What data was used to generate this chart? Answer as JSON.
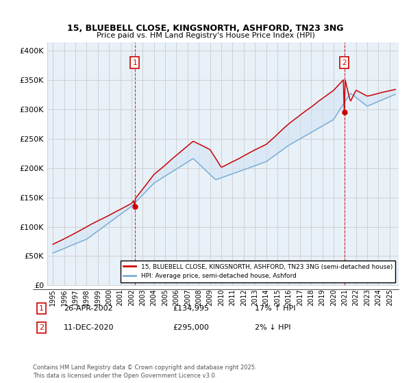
{
  "title": "15, BLUEBELL CLOSE, KINGSNORTH, ASHFORD, TN23 3NG",
  "subtitle": "Price paid vs. HM Land Registry's House Price Index (HPI)",
  "ylabel_ticks": [
    "£0",
    "£50K",
    "£100K",
    "£150K",
    "£200K",
    "£250K",
    "£300K",
    "£350K",
    "£400K"
  ],
  "ytick_vals": [
    0,
    50000,
    100000,
    150000,
    200000,
    250000,
    300000,
    350000,
    400000
  ],
  "ylim": [
    0,
    415000
  ],
  "xlim_start": 1994.5,
  "xlim_end": 2025.8,
  "legend_line1": "15, BLUEBELL CLOSE, KINGSNORTH, ASHFORD, TN23 3NG (semi-detached house)",
  "legend_line2": "HPI: Average price, semi-detached house, Ashford",
  "sale1_label": "1",
  "sale1_date": "26-APR-2002",
  "sale1_price": "£134,995",
  "sale1_hpi": "17% ↑ HPI",
  "sale1_x": 2002.3,
  "sale1_y": 134995,
  "sale2_label": "2",
  "sale2_date": "11-DEC-2020",
  "sale2_price": "£295,000",
  "sale2_hpi": "2% ↓ HPI",
  "sale2_x": 2020.95,
  "sale2_y": 295000,
  "footer": "Contains HM Land Registry data © Crown copyright and database right 2025.\nThis data is licensed under the Open Government Licence v3.0.",
  "red_color": "#cc0000",
  "blue_color": "#7aadd4",
  "blue_fill": "#d0e4f5",
  "background_color": "#ffffff",
  "grid_color": "#cccccc",
  "plot_bg": "#e8f0f8"
}
